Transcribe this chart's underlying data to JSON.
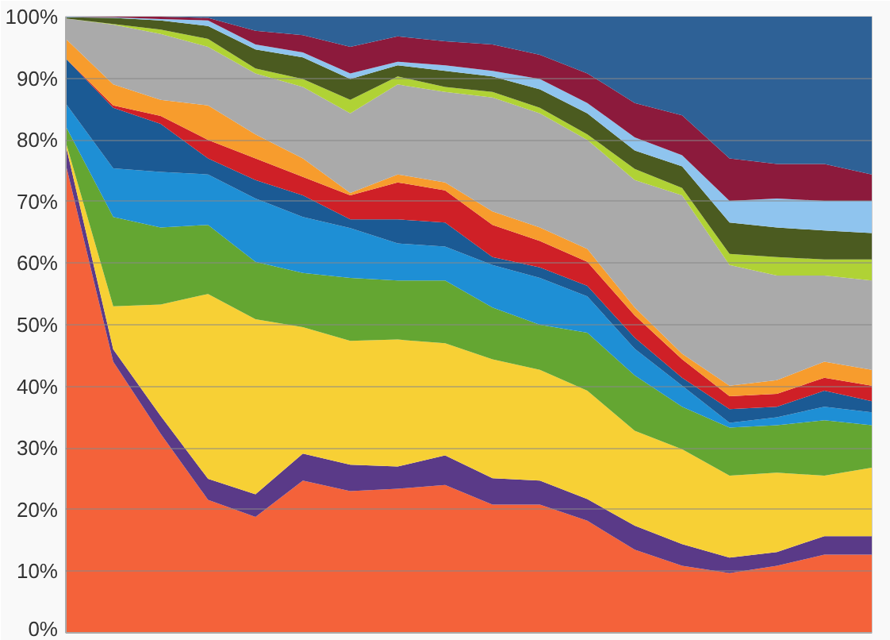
{
  "chart_data": {
    "type": "area",
    "stacked": true,
    "categories": [
      null,
      null,
      null,
      null,
      null,
      null,
      null,
      null,
      null,
      null,
      null,
      null,
      null,
      null,
      null,
      null,
      null,
      null
    ],
    "series": [
      {
        "color": "#f4623a",
        "values": [
          76,
          44,
          32.3,
          21.6,
          18.8,
          24.7,
          23,
          23.4,
          24,
          20.8,
          20.8,
          18.2,
          13.5,
          10.9,
          9.7,
          10.9,
          12.7,
          12.7
        ]
      },
      {
        "color": "#5a3a88",
        "values": [
          3.1,
          2,
          2.9,
          3.4,
          3.7,
          4.4,
          4.3,
          3.6,
          4.8,
          4.3,
          3.9,
          3.5,
          3.9,
          3.5,
          2.5,
          2.2,
          3,
          3
        ]
      },
      {
        "color": "#f7d035",
        "values": [
          0.5,
          7,
          18.1,
          30,
          28.4,
          20.5,
          20.1,
          20.6,
          18.2,
          19.3,
          18,
          17.6,
          15.4,
          15.4,
          13.3,
          12.9,
          9.8,
          11.1
        ]
      },
      {
        "color": "#64a632",
        "values": [
          2.6,
          14.5,
          12.5,
          11.2,
          9.3,
          8.8,
          10.2,
          9.6,
          10.2,
          8.4,
          7.3,
          9.4,
          9,
          6.9,
          7.8,
          7.7,
          9,
          6.9
        ]
      },
      {
        "color": "#1e8fd5",
        "values": [
          3.7,
          7.9,
          9,
          8.2,
          10.3,
          9.1,
          8.1,
          6,
          5.5,
          6.9,
          7.6,
          5.9,
          4.3,
          3.4,
          0.8,
          1.3,
          2.2,
          2.1
        ]
      },
      {
        "color": "#1b5a94",
        "values": [
          7.3,
          9.8,
          7.8,
          2.6,
          3,
          3.5,
          1.4,
          3.9,
          3.9,
          1.3,
          1.7,
          1.7,
          1.8,
          1.3,
          2.2,
          1.7,
          2.6,
          1.8
        ]
      },
      {
        "color": "#cf2027",
        "values": [
          0,
          0.4,
          1.3,
          3,
          3.5,
          3,
          3.9,
          6,
          5.2,
          5.2,
          4.3,
          3.9,
          3.6,
          3,
          2.1,
          2.1,
          2.1,
          2.5
        ]
      },
      {
        "color": "#f79c2d",
        "values": [
          3.2,
          3.4,
          2.6,
          5.6,
          3.9,
          3,
          0.4,
          1.3,
          1.3,
          2.2,
          2.2,
          2.1,
          1.3,
          0.9,
          1.7,
          2.2,
          2.6,
          2.6
        ]
      },
      {
        "color": "#aaaaaa",
        "values": [
          3.3,
          9.7,
          10.7,
          9.5,
          9.9,
          11.6,
          12.9,
          14.6,
          14.7,
          18.5,
          18.5,
          17.7,
          20.7,
          25.7,
          19.6,
          17,
          14,
          14.5
        ]
      },
      {
        "color": "#b0d235",
        "values": [
          0,
          0.1,
          0.7,
          1.3,
          0.8,
          1.3,
          2.2,
          1.3,
          0.8,
          0.9,
          0.9,
          0.9,
          1.8,
          1.2,
          1.8,
          3,
          2.6,
          3.4
        ]
      },
      {
        "color": "#4b5b20",
        "values": [
          0.2,
          1,
          1.5,
          2.1,
          3.1,
          3.5,
          3.4,
          1.8,
          2.6,
          2.5,
          3,
          3.4,
          3,
          3.5,
          5.1,
          4.8,
          4.7,
          4.3
        ]
      },
      {
        "color": "#8fc4ee",
        "values": [
          0.1,
          0.1,
          0.2,
          0.9,
          0.8,
          0.8,
          0.9,
          0.6,
          0.9,
          0.9,
          1.7,
          1.7,
          2.1,
          1.8,
          3.5,
          4.7,
          4.8,
          5.2
        ]
      },
      {
        "color": "#8c1a3c",
        "values": [
          0,
          0.1,
          0.4,
          0.4,
          2.2,
          2.8,
          4.3,
          4.1,
          3.9,
          4.3,
          3.9,
          4.8,
          5.6,
          6.5,
          6.9,
          5.6,
          6,
          4.3
        ]
      },
      {
        "color": "#2e6196",
        "values": [
          0,
          0,
          0,
          0.2,
          2.3,
          3,
          4.9,
          3.2,
          4,
          4.5,
          6.2,
          9.2,
          14,
          16,
          23,
          23.9,
          23.9,
          25.6
        ]
      }
    ],
    "ylim": [
      0,
      100
    ],
    "yticks": [
      {
        "value": 0,
        "label": "0%"
      },
      {
        "value": 10,
        "label": "10%"
      },
      {
        "value": 20,
        "label": "20%"
      },
      {
        "value": 30,
        "label": "30%"
      },
      {
        "value": 40,
        "label": "40%"
      },
      {
        "value": 50,
        "label": "50%"
      },
      {
        "value": 60,
        "label": "60%"
      },
      {
        "value": 70,
        "label": "70%"
      },
      {
        "value": 80,
        "label": "80%"
      },
      {
        "value": 90,
        "label": "90%"
      },
      {
        "value": 100,
        "label": "100%"
      }
    ],
    "grid": "y"
  }
}
